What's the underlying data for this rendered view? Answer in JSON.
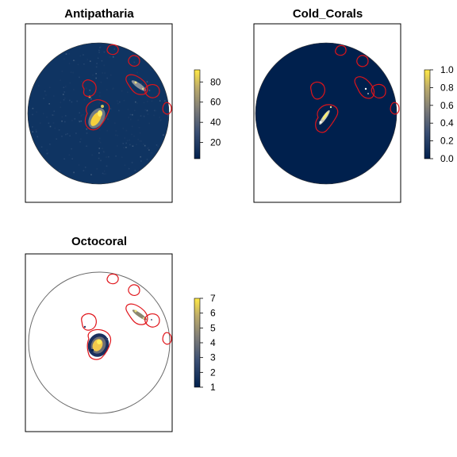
{
  "panels": [
    {
      "title": "Antipatharia",
      "palette_style": "full",
      "colorbar": {
        "ticks": [
          "20",
          "40",
          "60",
          "80"
        ],
        "min": 4,
        "max": 92,
        "tick_values": [
          20,
          40,
          60,
          80
        ]
      },
      "contours": "red"
    },
    {
      "title": "Cold_Corals",
      "palette_style": "sparse",
      "colorbar": {
        "ticks": [
          "0.0",
          "0.2",
          "0.4",
          "0.6",
          "0.8",
          "1.0"
        ],
        "min": 0,
        "max": 1,
        "tick_values": [
          0,
          0.2,
          0.4,
          0.6,
          0.8,
          1.0
        ]
      },
      "contours": "red"
    },
    {
      "title": "Octocoral",
      "palette_style": "patches",
      "colorbar": {
        "ticks": [
          "1",
          "2",
          "3",
          "4",
          "5",
          "6",
          "7"
        ],
        "min": 1,
        "max": 7,
        "tick_values": [
          1,
          2,
          3,
          4,
          5,
          6,
          7
        ]
      },
      "contours": "red"
    }
  ],
  "colors": {
    "low": "#0b2a55",
    "mid": "#7f7f7f",
    "high": "#ffe94a",
    "contour": "#e0141a",
    "frame": "#000000",
    "circle_outline": "#6a6a6a"
  }
}
